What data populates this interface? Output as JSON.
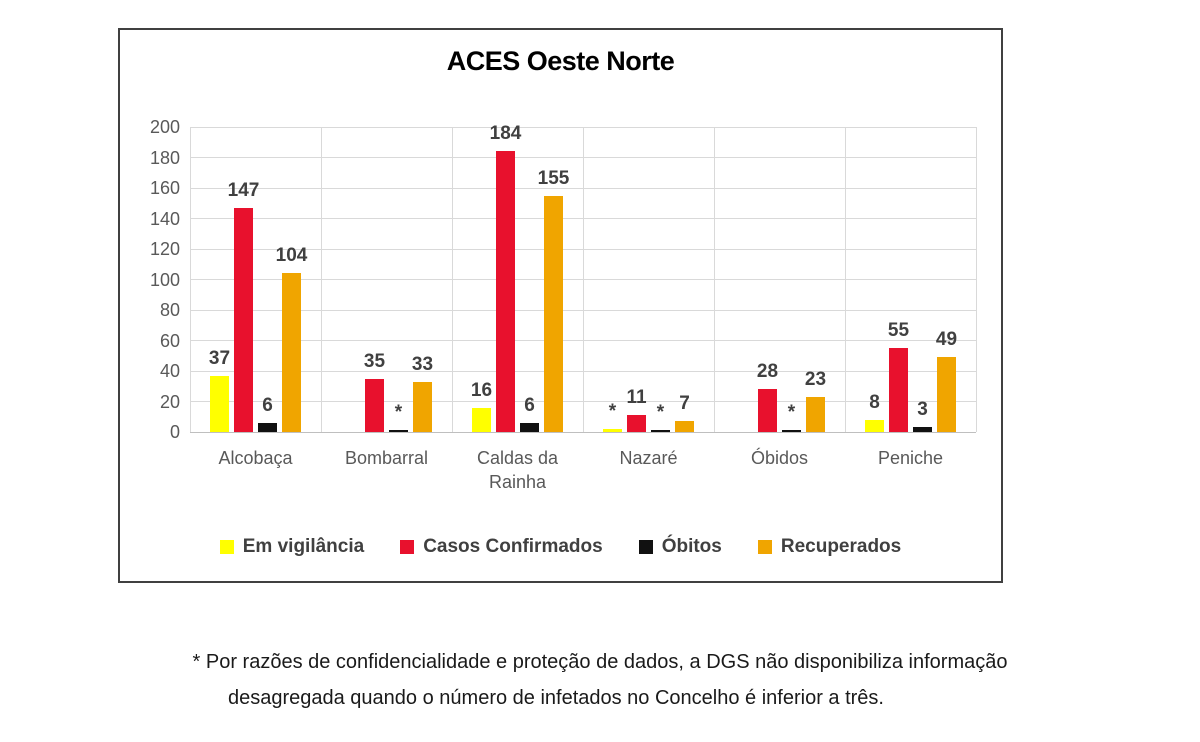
{
  "chart": {
    "title": "ACES Oeste Norte"
  },
  "chart_data": {
    "type": "bar",
    "title": "ACES Oeste Norte",
    "categories": [
      "Alcobaça",
      "Bombarral",
      "Caldas da Rainha",
      "Nazaré",
      "Óbidos",
      "Peniche"
    ],
    "series": [
      {
        "name": "Em vigilância",
        "color": "#ffff00",
        "values": [
          37,
          null,
          16,
          "*",
          null,
          8
        ]
      },
      {
        "name": "Casos Confirmados",
        "color": "#e8112d",
        "values": [
          147,
          35,
          184,
          11,
          28,
          55
        ]
      },
      {
        "name": "Óbitos",
        "color": "#111111",
        "values": [
          6,
          "*",
          6,
          "*",
          "*",
          3
        ]
      },
      {
        "name": "Recuperados",
        "color": "#f0a500",
        "values": [
          104,
          33,
          155,
          7,
          23,
          49
        ]
      }
    ],
    "ylim": [
      0,
      200
    ],
    "ytick_step": 20,
    "grid": true,
    "legend_position": "bottom",
    "suppressed_marker": "*",
    "xlabel": "",
    "ylabel": ""
  },
  "footnote": {
    "line1": "* Por razões de confidencialidade e proteção de dados, a DGS não disponibiliza informação",
    "line2": "desagregada quando o número de infetados no Concelho é inferior a três."
  }
}
